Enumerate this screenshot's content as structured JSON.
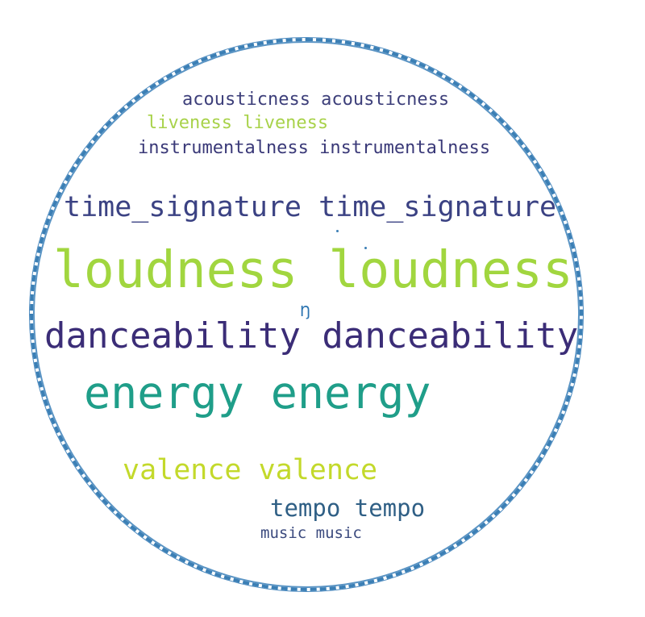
{
  "words": {
    "acousticness": "acousticness acousticness",
    "liveness": "liveness liveness",
    "instrumentalness": "instrumentalness instrumentalness",
    "time_signature": "time_signature time_signature",
    "loudness": "loudness loudness",
    "danceability": "danceability danceability",
    "energy": "energy energy",
    "valence": "valence valence",
    "tempo": "tempo tempo",
    "music": "music music"
  },
  "colors": {
    "outline": "#3b7fb5",
    "acousticness": "#3d3f7a",
    "liveness": "#a8d24a",
    "instrumentalness": "#3a3978",
    "time_signature": "#3b4283",
    "loudness": "#a1d63f",
    "danceability": "#3b2d77",
    "energy": "#1f9e89",
    "valence": "#c3d92b",
    "tempo": "#2f5f85",
    "music": "#3b4a7e"
  },
  "glyph_text": "Ŋ"
}
